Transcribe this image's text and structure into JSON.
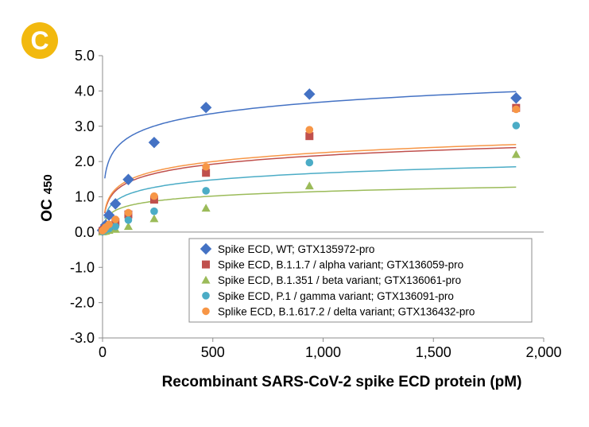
{
  "panel_label": "C",
  "chart_data": {
    "type": "scatter",
    "title": "",
    "xlabel": "Recombinant SARS-CoV-2 spike ECD protein (pM)",
    "ylabel": "OC",
    "ylabel_subscript": "450",
    "xlim": [
      0,
      2000
    ],
    "ylim": [
      -3.0,
      5.0
    ],
    "x_ticks": [
      0,
      500,
      1000,
      1500,
      2000
    ],
    "x_tick_labels": [
      "0",
      "500",
      "1,000",
      "1,500",
      "2,000"
    ],
    "y_ticks": [
      5.0,
      4.0,
      3.0,
      2.0,
      1.0,
      0.0,
      -1.0,
      -2.0,
      -3.0
    ],
    "y_tick_labels": [
      "5.0",
      "4.0",
      "3.0",
      "2.0",
      "1.0",
      "0.0",
      "-1.0",
      "-2.0",
      "-3.0"
    ],
    "grid": false,
    "legend_position": "bottom-right",
    "x": [
      0,
      7.3,
      14.6,
      29.3,
      58.6,
      117,
      234,
      469,
      938,
      1875
    ],
    "series": [
      {
        "name": "Spike ECD, WT; GTX135972-pro",
        "marker": "diamond",
        "color": "#4472C4",
        "values": [
          0.05,
          0.12,
          0.2,
          0.48,
          0.8,
          1.49,
          2.54,
          3.53,
          3.91,
          3.8
        ],
        "fit": {
          "a": 0.47,
          "b": 0.44
        }
      },
      {
        "name": "Spike ECD, B.1.1.7 / alpha variant; GTX136059-pro",
        "marker": "square",
        "color": "#C0504D",
        "values": [
          0.03,
          0.06,
          0.1,
          0.15,
          0.28,
          0.5,
          0.92,
          1.68,
          2.72,
          3.52
        ],
        "fit": {
          "a": 0.355,
          "b": -0.28
        }
      },
      {
        "name": "Spike ECD, B.1.351 / beta variant; GTX136061-pro",
        "marker": "triangle",
        "color": "#9BBB59",
        "values": [
          0.01,
          0.02,
          0.03,
          0.05,
          0.08,
          0.16,
          0.38,
          0.68,
          1.31,
          2.2
        ],
        "fit": {
          "a": 0.19,
          "b": -0.16
        }
      },
      {
        "name": "Spike ECD, P.1 / gamma variant; GTX136091-pro",
        "marker": "circle",
        "color": "#4BACC6",
        "values": [
          0.02,
          0.04,
          0.07,
          0.1,
          0.16,
          0.34,
          0.59,
          1.17,
          1.97,
          3.02
        ],
        "fit": {
          "a": 0.28,
          "b": -0.26
        }
      },
      {
        "name": "Splike ECD, B.1.617.2 / delta variant; GTX136432-pro",
        "marker": "circle",
        "color": "#F79646",
        "values": [
          0.04,
          0.08,
          0.14,
          0.22,
          0.36,
          0.55,
          1.02,
          1.85,
          2.9,
          3.48
        ],
        "fit": {
          "a": 0.365,
          "b": -0.27
        }
      }
    ]
  }
}
